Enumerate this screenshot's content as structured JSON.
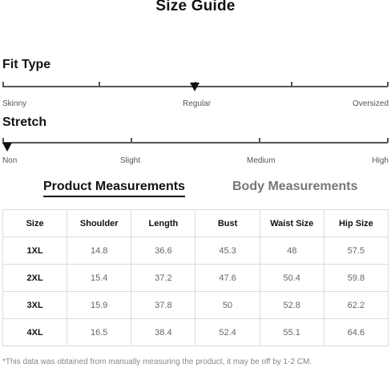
{
  "title": "Size Guide",
  "fit_type": {
    "heading": "Fit Type",
    "labels": [
      "Skinny",
      "Regular",
      "Oversized"
    ],
    "selected": "Regular"
  },
  "stretch": {
    "heading": "Stretch",
    "labels": [
      "Non",
      "Slight",
      "Medium",
      "High"
    ],
    "selected": "Non"
  },
  "tabs": {
    "product": "Product Measurements",
    "body": "Body Measurements",
    "active": "Product Measurements"
  },
  "table": {
    "headers": [
      "Size",
      "Shoulder",
      "Length",
      "Bust",
      "Waist Size",
      "Hip Size"
    ],
    "rows": [
      [
        "1XL",
        "14.8",
        "36.6",
        "45.3",
        "48",
        "57.5"
      ],
      [
        "2XL",
        "15.4",
        "37.2",
        "47.6",
        "50.4",
        "59.8"
      ],
      [
        "3XL",
        "15.9",
        "37.8",
        "50",
        "52.8",
        "62.2"
      ],
      [
        "4XL",
        "16.5",
        "38.4",
        "52.4",
        "55.1",
        "64.6"
      ]
    ]
  },
  "footnote": "*This data was obtained from manually measuring the product, it may be off by 1-2 CM."
}
